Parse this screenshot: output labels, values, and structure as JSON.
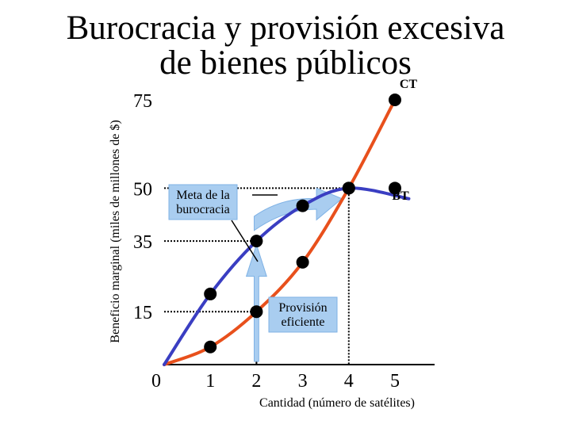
{
  "title_line1": "Burocracia y provisión excesiva",
  "title_line2": "de bienes públicos",
  "chart_data": {
    "type": "line",
    "ylabel": "Beneficio marginal (miles de millones de $)",
    "xlabel": "Cantidad (número de satélites)",
    "x_ticks": [
      "0",
      "1",
      "2",
      "3",
      "4",
      "5"
    ],
    "y_ticks": [
      "75",
      "50",
      "35",
      "15"
    ],
    "xlim": [
      0,
      5.6
    ],
    "ylim": [
      0,
      75
    ],
    "series": [
      {
        "name": "CT",
        "color": "#e8501c",
        "x": [
          0,
          1,
          2,
          3,
          4,
          5
        ],
        "y": [
          0,
          5,
          15,
          29,
          50,
          75
        ]
      },
      {
        "name": "BT",
        "color": "#3a3ec2",
        "x": [
          0,
          1,
          2,
          3,
          4,
          5
        ],
        "y": [
          0,
          20,
          35,
          45,
          50,
          50
        ]
      }
    ],
    "reference_lines": [
      {
        "x": 2,
        "y": 15
      },
      {
        "x": 2,
        "y": 35
      },
      {
        "x": 4,
        "y": 50
      }
    ],
    "annotations": {
      "goal": "Meta de la\nburocracia",
      "efficient": "Provisión\neficiente"
    }
  }
}
